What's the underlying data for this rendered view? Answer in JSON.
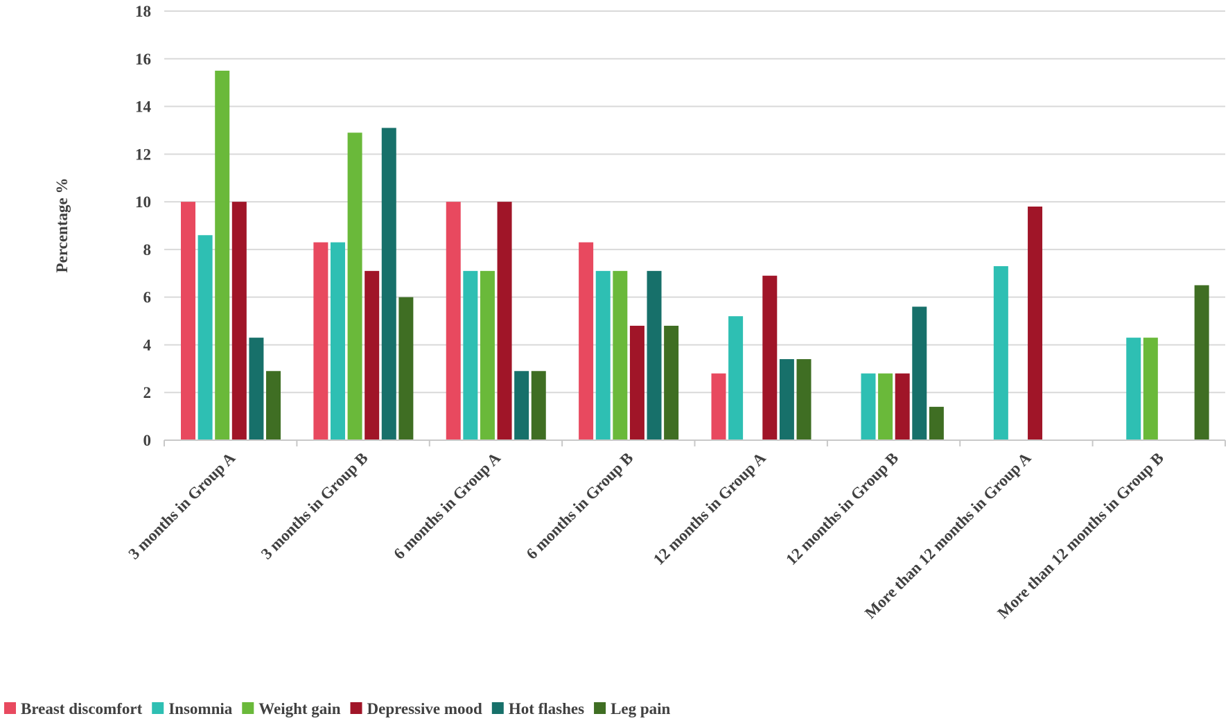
{
  "chart_data": {
    "type": "bar",
    "title": "",
    "xlabel": "",
    "ylabel": "Percentage %",
    "ylim": [
      0,
      18
    ],
    "yticks": [
      0,
      2,
      4,
      6,
      8,
      10,
      12,
      14,
      16,
      18
    ],
    "grid": true,
    "legend_position": "bottom-left",
    "categories": [
      "3 months in Group A",
      "3 months in Group B",
      "6 months in Group A",
      "6 months in Group B",
      "12 months in Group A",
      "12 months in Group B",
      "More than 12 months in Group A",
      "More than 12 months in Group B"
    ],
    "series": [
      {
        "name": "Breast discomfort",
        "color": "#e8495f",
        "values": [
          10,
          8.3,
          10,
          8.3,
          2.8,
          0,
          0,
          0
        ]
      },
      {
        "name": "Insomnia",
        "color": "#2ebfb3",
        "values": [
          8.6,
          8.3,
          7.1,
          7.1,
          5.2,
          2.8,
          7.3,
          4.3
        ]
      },
      {
        "name": "Weight gain",
        "color": "#6ab93a",
        "values": [
          15.5,
          12.9,
          7.1,
          7.1,
          0,
          2.8,
          0,
          4.3
        ]
      },
      {
        "name": "Depressive mood",
        "color": "#a01528",
        "values": [
          10,
          7.1,
          10,
          4.8,
          6.9,
          2.8,
          9.8,
          0
        ]
      },
      {
        "name": "Hot flashes",
        "color": "#17706a",
        "values": [
          4.3,
          13.1,
          2.9,
          7.1,
          3.4,
          5.6,
          0,
          0
        ]
      },
      {
        "name": "Leg pain",
        "color": "#3f6e23",
        "values": [
          2.9,
          6.0,
          2.9,
          4.8,
          3.4,
          1.4,
          0,
          6.5
        ]
      }
    ]
  }
}
